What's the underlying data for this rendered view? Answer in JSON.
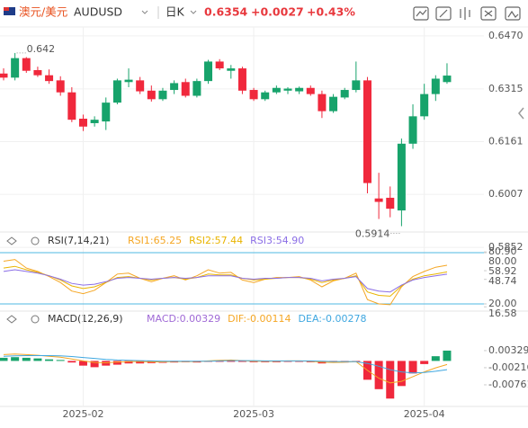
{
  "header": {
    "pair_cn": "澳元/美元",
    "symbol": "AUDUSD",
    "period": "日K",
    "price": "0.6354",
    "change": "+0.0027",
    "change_pct": "+0.43%"
  },
  "chart_data": [
    {
      "type": "candlestick",
      "categories": [
        null,
        null,
        null,
        null,
        null,
        null,
        null,
        "2025-02",
        null,
        null,
        null,
        null,
        null,
        null,
        null,
        null,
        null,
        null,
        null,
        null,
        null,
        null,
        "2025-03",
        null,
        null,
        null,
        null,
        null,
        null,
        null,
        null,
        null,
        null,
        null,
        null,
        null,
        null,
        "2025-04",
        null,
        null
      ],
      "open": [
        0.636,
        0.6348,
        0.6405,
        0.637,
        0.6355,
        0.634,
        0.6305,
        0.6228,
        0.6215,
        0.622,
        0.6275,
        0.6335,
        0.634,
        0.631,
        0.6285,
        0.6312,
        0.6335,
        0.6295,
        0.6338,
        0.6395,
        0.6368,
        0.6375,
        0.6312,
        0.6285,
        0.6305,
        0.631,
        0.6308,
        0.6318,
        0.63,
        0.625,
        0.629,
        0.6312,
        0.634,
        0.5995,
        0.5997,
        0.596,
        0.6155,
        0.6235,
        0.63,
        0.6335
      ],
      "high": [
        0.6375,
        0.642,
        0.6408,
        0.638,
        0.6372,
        0.6352,
        0.632,
        0.624,
        0.6235,
        0.629,
        0.6345,
        0.6375,
        0.635,
        0.6325,
        0.6318,
        0.634,
        0.6345,
        0.6345,
        0.64,
        0.6402,
        0.6385,
        0.638,
        0.6318,
        0.631,
        0.6325,
        0.632,
        0.6322,
        0.6325,
        0.631,
        0.63,
        0.6318,
        0.6395,
        0.635,
        0.607,
        0.603,
        0.617,
        0.627,
        0.633,
        0.6355,
        0.639
      ],
      "low": [
        0.634,
        0.634,
        0.6362,
        0.635,
        0.633,
        0.6295,
        0.6218,
        0.6192,
        0.6205,
        0.6195,
        0.627,
        0.632,
        0.63,
        0.6278,
        0.628,
        0.63,
        0.629,
        0.629,
        0.633,
        0.637,
        0.6345,
        0.63,
        0.628,
        0.628,
        0.63,
        0.63,
        0.63,
        0.6295,
        0.623,
        0.6245,
        0.6285,
        0.6305,
        0.601,
        0.5935,
        0.594,
        0.5914,
        0.614,
        0.6225,
        0.628,
        0.633
      ],
      "close": [
        0.6348,
        0.6405,
        0.6368,
        0.6355,
        0.6338,
        0.6305,
        0.6225,
        0.6205,
        0.6225,
        0.6275,
        0.634,
        0.6342,
        0.6308,
        0.6285,
        0.631,
        0.6332,
        0.6295,
        0.6338,
        0.6395,
        0.6375,
        0.6375,
        0.631,
        0.6285,
        0.6305,
        0.6318,
        0.6316,
        0.6318,
        0.63,
        0.625,
        0.6292,
        0.6312,
        0.634,
        0.604,
        0.5985,
        0.5965,
        0.6155,
        0.6235,
        0.63,
        0.6345,
        0.6354
      ],
      "up_color": "#17a36b",
      "down_color": "#f0283c",
      "ylim": [
        0.5834,
        0.6496
      ],
      "yticks": [
        {
          "value": 0.647,
          "label": "0.6470"
        },
        0.6315,
        0.6161,
        0.6007,
        0.5852
      ],
      "grid": true
    },
    {
      "type": "line",
      "title": "RSI(7,14,21)",
      "series": [
        {
          "label": "RSI1:65.25",
          "color": "#f5a623",
          "values": [
            70,
            72,
            62,
            58,
            52,
            45,
            35,
            32,
            36,
            45,
            55,
            56,
            50,
            46,
            50,
            53,
            48,
            53,
            60,
            56,
            57,
            48,
            45,
            49,
            51,
            51,
            52,
            48,
            40,
            47,
            50,
            56,
            25,
            20,
            19,
            40,
            52,
            58,
            63,
            65.25
          ]
        },
        {
          "label": "RSI2:57.44",
          "color": "#e9b400",
          "values": [
            62,
            64,
            60,
            57,
            53,
            48,
            41,
            38,
            40,
            45,
            51,
            52,
            50,
            48,
            50,
            51,
            49,
            51,
            55,
            54,
            54,
            50,
            48,
            49,
            50,
            51,
            51,
            49,
            45,
            48,
            50,
            53,
            34,
            30,
            29,
            41,
            49,
            53,
            55,
            57.44
          ]
        },
        {
          "label": "RSI3:54.90",
          "color": "#8b6ee6",
          "values": [
            58,
            60,
            58,
            56,
            53,
            49,
            44,
            42,
            43,
            46,
            50,
            51,
            50,
            49,
            50,
            51,
            50,
            51,
            53,
            53,
            53,
            50,
            49,
            50,
            50,
            51,
            51,
            50,
            47,
            49,
            50,
            52,
            38,
            35,
            34,
            42,
            48,
            51,
            53,
            54.9
          ]
        }
      ],
      "ylim": [
        12.6,
        85.3
      ],
      "yticks": [
        {
          "value": 80,
          "label": "80.00"
        },
        {
          "value": 80.9,
          "label": "80.90"
        },
        58.92,
        48.74,
        {
          "value": 20,
          "label": "20.00"
        },
        16.58
      ],
      "levels": [
        80,
        20
      ],
      "level_color": "#4fb9e3"
    },
    {
      "type": "macd",
      "title": "MACD(12,26,9)",
      "series": [
        {
          "label": "MACD:0.00329",
          "kind": "bar",
          "color": "#a06ad6",
          "up_color": "#17a36b",
          "down_color": "#f0283c",
          "values": [
            0.001,
            0.0012,
            0.001,
            0.0008,
            0.0005,
            0.0003,
            -0.0005,
            -0.0015,
            -0.002,
            -0.0015,
            -0.0012,
            -0.0008,
            -0.0008,
            -0.0007,
            -0.0006,
            -0.0005,
            -0.0004,
            -0.0005,
            -0.0002,
            -0.0002,
            -0.0001,
            -0.0003,
            -0.0004,
            -0.0004,
            -0.0004,
            -0.0003,
            -0.0003,
            -0.0004,
            -0.0008,
            -0.0006,
            -0.0005,
            -0.0002,
            -0.006,
            -0.009,
            -0.012,
            -0.008,
            -0.004,
            -0.001,
            0.0015,
            0.00329
          ]
        },
        {
          "label": "DIF:-0.00114",
          "kind": "line",
          "color": "#f5a623",
          "values": [
            0.002,
            0.0022,
            0.002,
            0.0018,
            0.0015,
            0.0012,
            0.0006,
            0.0,
            -0.0005,
            -0.0006,
            -0.0004,
            -0.0002,
            -0.0002,
            -0.0003,
            -0.0003,
            -0.0002,
            -0.0002,
            -0.0002,
            0.0,
            0.0002,
            0.0003,
            0.0001,
            -0.0001,
            -0.0001,
            -0.0001,
            0.0,
            0.0,
            -0.0001,
            -0.0004,
            -0.0005,
            -0.0004,
            -0.0002,
            -0.003,
            -0.0055,
            -0.007,
            -0.0065,
            -0.005,
            -0.0035,
            -0.0022,
            -0.00114
          ]
        },
        {
          "label": "DEA:-0.00278",
          "kind": "line",
          "color": "#3fa7e0",
          "values": [
            0.0015,
            0.0016,
            0.0017,
            0.0017,
            0.0017,
            0.0016,
            0.0014,
            0.0011,
            0.0008,
            0.0005,
            0.0003,
            0.0002,
            0.0001,
            0.0,
            -0.0001,
            -0.0001,
            -0.0001,
            -0.0001,
            -0.0001,
            0.0,
            0.0001,
            0.0001,
            0.0001,
            0.0,
            0.0,
            0.0,
            0.0,
            0.0,
            -0.0001,
            -0.0002,
            -0.0002,
            -0.0002,
            -0.0008,
            -0.0017,
            -0.0028,
            -0.0035,
            -0.0038,
            -0.0037,
            -0.0033,
            -0.00278
          ]
        }
      ],
      "ylim": [
        -0.0145,
        0.009
      ],
      "yticks": [
        0.00329,
        -0.00216,
        -0.00761
      ]
    }
  ]
}
